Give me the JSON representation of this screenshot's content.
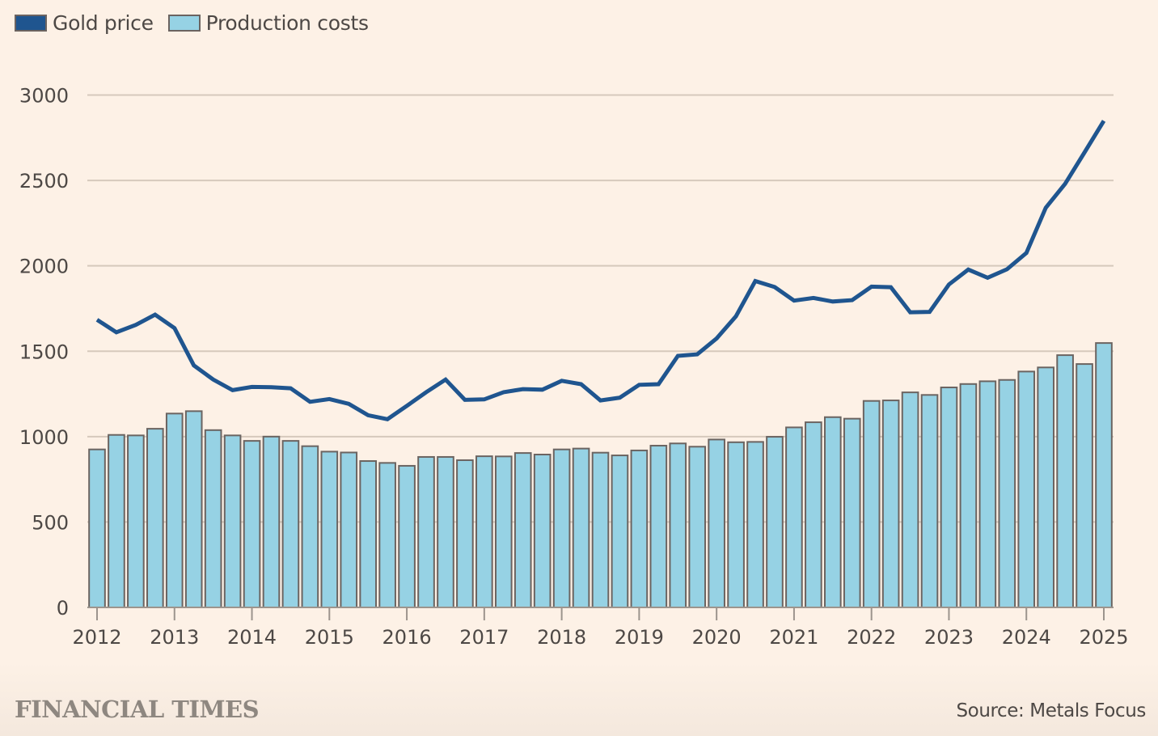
{
  "chart_data": {
    "type": "bar+line",
    "title": "",
    "xlabel": "",
    "ylabel": "",
    "ylim": [
      0,
      3000
    ],
    "yticks": [
      0,
      500,
      1000,
      1500,
      2000,
      2500,
      3000
    ],
    "ytick_labels": [
      "0",
      "500",
      "1000",
      "1500",
      "2000",
      "2500",
      "3000"
    ],
    "grid": true,
    "x_tick_labels": [
      "2012",
      "2013",
      "2014",
      "2015",
      "2016",
      "2017",
      "2018",
      "2019",
      "2020",
      "2021",
      "2022",
      "2023",
      "2024",
      "2025"
    ],
    "x": [
      "2012 Q1",
      "2012 Q2",
      "2012 Q3",
      "2012 Q4",
      "2013 Q1",
      "2013 Q2",
      "2013 Q3",
      "2013 Q4",
      "2014 Q1",
      "2014 Q2",
      "2014 Q3",
      "2014 Q4",
      "2015 Q1",
      "2015 Q2",
      "2015 Q3",
      "2015 Q4",
      "2016 Q1",
      "2016 Q2",
      "2016 Q3",
      "2016 Q4",
      "2017 Q1",
      "2017 Q2",
      "2017 Q3",
      "2017 Q4",
      "2018 Q1",
      "2018 Q2",
      "2018 Q3",
      "2018 Q4",
      "2019 Q1",
      "2019 Q2",
      "2019 Q3",
      "2019 Q4",
      "2020 Q1",
      "2020 Q2",
      "2020 Q3",
      "2020 Q4",
      "2021 Q1",
      "2021 Q2",
      "2021 Q3",
      "2021 Q4",
      "2022 Q1",
      "2022 Q2",
      "2022 Q3",
      "2022 Q4",
      "2023 Q1",
      "2023 Q2",
      "2023 Q3",
      "2023 Q4",
      "2024 Q1",
      "2024 Q2",
      "2024 Q3",
      "2024 Q4",
      "2025 Q1"
    ],
    "legend_position": "top-left",
    "series": [
      {
        "name": "Gold price",
        "type": "line",
        "color": "#1f558f",
        "values": [
          1684,
          1611,
          1654,
          1714,
          1635,
          1417,
          1334,
          1272,
          1291,
          1289,
          1283,
          1204,
          1220,
          1192,
          1125,
          1102,
          1180,
          1260,
          1334,
          1215,
          1218,
          1260,
          1278,
          1275,
          1327,
          1307,
          1212,
          1228,
          1303,
          1307,
          1473,
          1482,
          1575,
          1705,
          1911,
          1876,
          1796,
          1812,
          1791,
          1799,
          1878,
          1875,
          1728,
          1730,
          1891,
          1978,
          1930,
          1980,
          2075,
          2340,
          2480,
          2664,
          2849
        ]
      },
      {
        "name": "Production costs",
        "type": "bar",
        "color": "#96d2e4",
        "values": [
          925,
          1010,
          1007,
          1046,
          1135,
          1149,
          1038,
          1007,
          975,
          1000,
          975,
          944,
          912,
          907,
          857,
          846,
          829,
          881,
          881,
          862,
          885,
          884,
          904,
          895,
          925,
          930,
          906,
          890,
          919,
          947,
          960,
          941,
          983,
          967,
          969,
          999,
          1054,
          1084,
          1114,
          1105,
          1209,
          1212,
          1259,
          1244,
          1288,
          1308,
          1324,
          1332,
          1381,
          1405,
          1477,
          1425,
          1548
        ]
      }
    ]
  },
  "legend": {
    "items": [
      {
        "label": "Gold price",
        "color": "#1f558f"
      },
      {
        "label": "Production costs",
        "color": "#96d2e4"
      }
    ]
  },
  "footer": {
    "brand": "FINANCIAL TIMES",
    "source": "Source: Metals Focus"
  }
}
